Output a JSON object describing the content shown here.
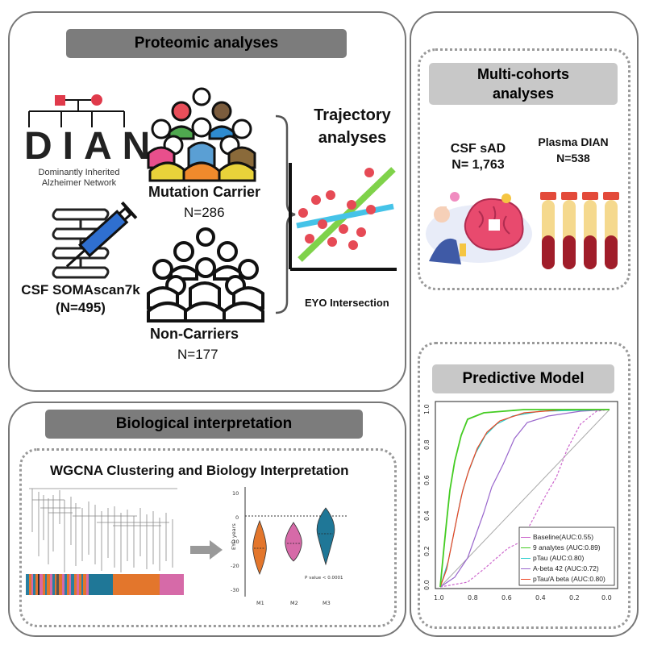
{
  "proteomic": {
    "header": "Proteomic analyses",
    "dian_logo_text": "DIAN",
    "dian_subtitle_line1": "Dominantly Inherited",
    "dian_subtitle_line2": "Alzheimer Network",
    "csf_label": "CSF SOMAscan7k",
    "csf_n": "(N=495)",
    "carrier_label": "Mutation Carrier",
    "carrier_n": "N=286",
    "noncarrier_label": "Non-Carriers",
    "noncarrier_n": "N=177",
    "trajectory_line1": "Trajectory",
    "trajectory_line2": "analyses",
    "eyo_label": "EYO Intersection"
  },
  "multicohort": {
    "header_line1": "Multi-cohorts",
    "header_line2": "analyses",
    "csf_label": "CSF sAD",
    "csf_n": "N= 1,763",
    "plasma_label": "Plasma DIAN",
    "plasma_n": "N=538"
  },
  "predictive": {
    "header": "Predictive Model",
    "legend": [
      {
        "label": "Baseline(AUC:0.55)",
        "color": "#cc66cc"
      },
      {
        "label": "9 analytes (AUC:0.89)",
        "color": "#44cc22"
      },
      {
        "label": "pTau (AUC:0.80)",
        "color": "#22cccc"
      },
      {
        "label": "A-beta 42 (AUC:0.72)",
        "color": "#9966cc"
      },
      {
        "label": "pTau/A beta (AUC:0.80)",
        "color": "#ee4422"
      }
    ],
    "y_ticks": [
      "0.0",
      "0.2",
      "0.4",
      "0.6",
      "0.8",
      "1.0"
    ],
    "x_ticks": [
      "1.0",
      "0.8",
      "0.6",
      "0.4",
      "0.2",
      "0.0"
    ]
  },
  "biological": {
    "header": "Biological interpretation",
    "subheader": "WGCNA Clustering and Biology Interpretation",
    "violin_ylabel": "EYO years",
    "violin_y_ticks": [
      "10",
      "0",
      "-10",
      "-20",
      "-30"
    ],
    "violin_categories": [
      "M1",
      "M2",
      "M3"
    ],
    "violin_pvalue": "P value < 0.0001"
  }
}
